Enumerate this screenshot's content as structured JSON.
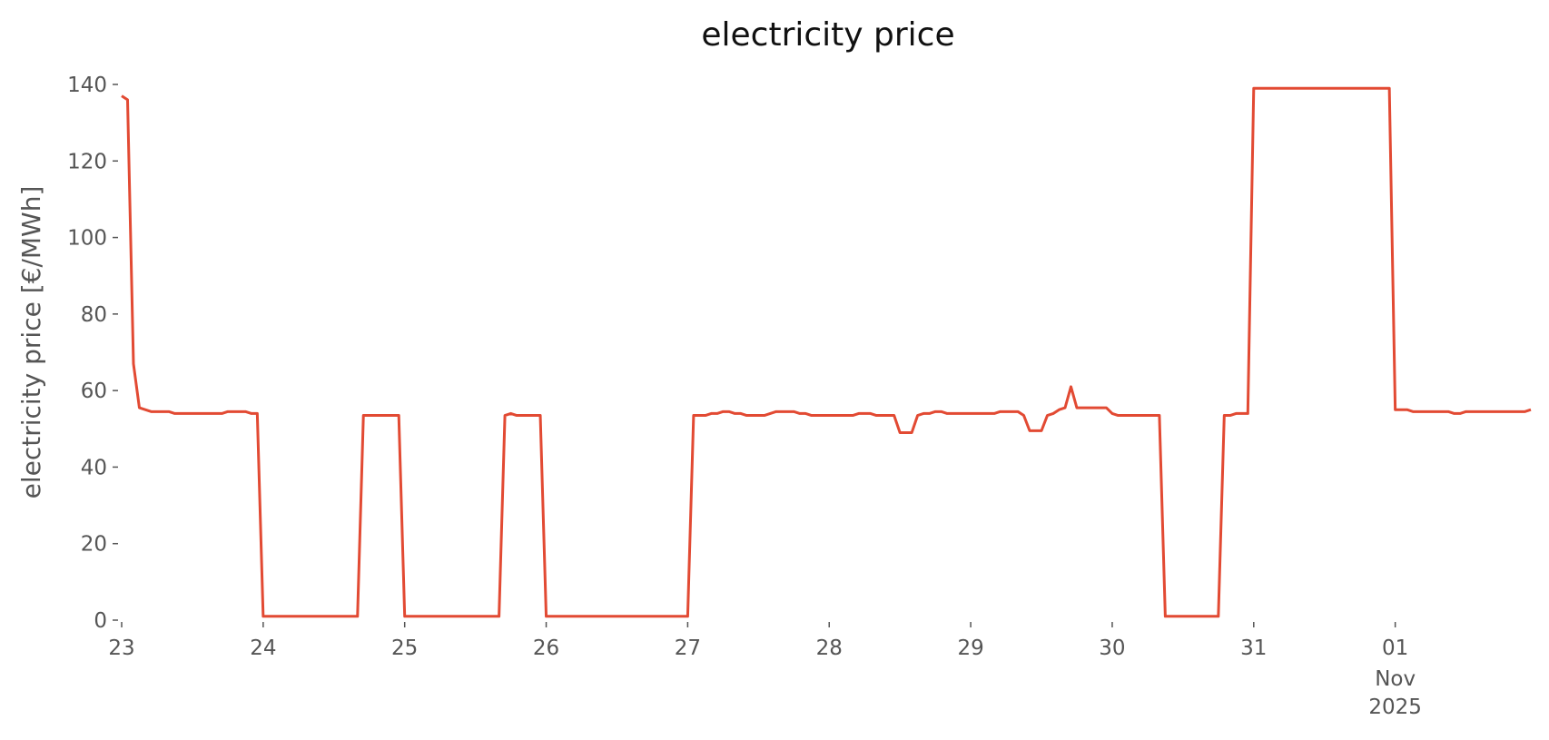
{
  "chart_data": {
    "type": "line",
    "title": "electricity price",
    "ylabel": "electricity price [€/MWh]",
    "series": [
      {
        "name": "electricity price",
        "color": "#E24A33",
        "values": [
          137,
          136,
          67,
          55.5,
          55,
          54.5,
          54.5,
          54.5,
          54.5,
          54,
          54,
          54,
          54,
          54,
          54,
          54,
          54,
          54,
          54.5,
          54.5,
          54.5,
          54.5,
          54,
          54,
          1,
          1,
          1,
          1,
          1,
          1,
          1,
          1,
          1,
          1,
          1,
          1,
          1,
          1,
          1,
          1,
          1,
          53.5,
          53.5,
          53.5,
          53.5,
          53.5,
          53.5,
          53.5,
          1,
          1,
          1,
          1,
          1,
          1,
          1,
          1,
          1,
          1,
          1,
          1,
          1,
          1,
          1,
          1,
          1,
          53.5,
          54,
          53.5,
          53.5,
          53.5,
          53.5,
          53.5,
          1,
          1,
          1,
          1,
          1,
          1,
          1,
          1,
          1,
          1,
          1,
          1,
          1,
          1,
          1,
          1,
          1,
          1,
          1,
          1,
          1,
          1,
          1,
          1,
          1,
          53.5,
          53.5,
          53.5,
          54,
          54,
          54.5,
          54.5,
          54,
          54,
          53.5,
          53.5,
          53.5,
          53.5,
          54,
          54.5,
          54.5,
          54.5,
          54.5,
          54,
          54,
          53.5,
          53.5,
          53.5,
          53.5,
          53.5,
          53.5,
          53.5,
          53.5,
          54,
          54,
          54,
          53.5,
          53.5,
          53.5,
          53.5,
          49,
          49,
          49,
          53.5,
          54,
          54,
          54.5,
          54.5,
          54,
          54,
          54,
          54,
          54,
          54,
          54,
          54,
          54,
          54.5,
          54.5,
          54.5,
          54.5,
          53.5,
          49.5,
          49.5,
          49.5,
          53.5,
          54,
          55,
          55.5,
          61,
          55.5,
          55.5,
          55.5,
          55.5,
          55.5,
          55.5,
          54,
          53.5,
          53.5,
          53.5,
          53.5,
          53.5,
          53.5,
          53.5,
          53.5,
          1,
          1,
          1,
          1,
          1,
          1,
          1,
          1,
          1,
          1,
          53.5,
          53.5,
          54,
          54,
          54,
          139,
          139,
          139,
          139,
          139,
          139,
          139,
          139,
          139,
          139,
          139,
          139,
          139,
          139,
          139,
          139,
          139,
          139,
          139,
          139,
          139,
          139,
          139,
          139,
          55,
          55,
          55,
          54.5,
          54.5,
          54.5,
          54.5,
          54.5,
          54.5,
          54.5,
          54,
          54,
          54.5,
          54.5,
          54.5,
          54.5,
          54.5,
          54.5,
          54.5,
          54.5,
          54.5,
          54.5,
          54.5,
          55
        ]
      }
    ],
    "xlim": [
      0,
      239
    ],
    "xticks": [
      {
        "value": 0,
        "label": "23"
      },
      {
        "value": 24,
        "label": "24"
      },
      {
        "value": 48,
        "label": "25"
      },
      {
        "value": 72,
        "label": "26"
      },
      {
        "value": 96,
        "label": "27"
      },
      {
        "value": 120,
        "label": "28"
      },
      {
        "value": 144,
        "label": "29"
      },
      {
        "value": 168,
        "label": "30"
      },
      {
        "value": 192,
        "label": "31"
      },
      {
        "value": 216,
        "label": "01"
      }
    ],
    "xtick_sublabels": [
      "Nov",
      "2025"
    ],
    "ylim": [
      0,
      140
    ],
    "yticks": [
      0,
      20,
      40,
      60,
      80,
      100,
      120,
      140
    ],
    "grid": false
  }
}
